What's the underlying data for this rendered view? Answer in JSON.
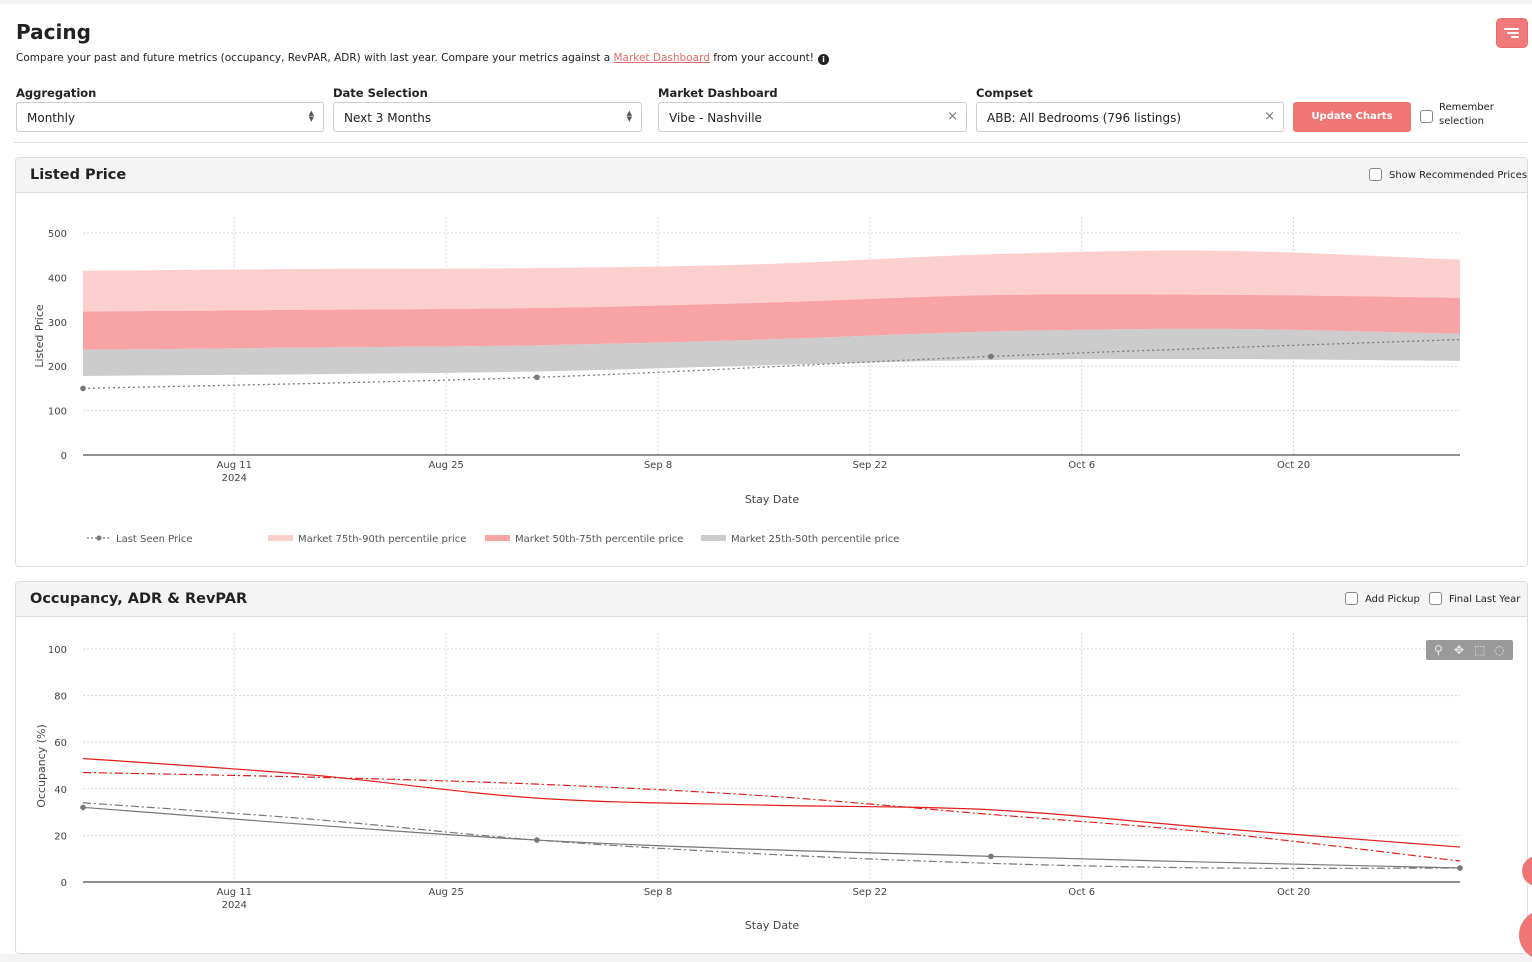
{
  "header": {
    "title": "Pacing",
    "subtitle_before": "Compare your past and future metrics (occupancy, RevPAR, ADR) with last year. Compare your metrics against a ",
    "subtitle_link": "Market Dashboard",
    "subtitle_after": " from your account!",
    "info_icon": "info-icon",
    "menu_icon": "menu-lines-icon"
  },
  "filters": {
    "aggregation": {
      "label": "Aggregation",
      "value": "Monthly"
    },
    "date_selection": {
      "label": "Date Selection",
      "value": "Next 3 Months"
    },
    "market_dashboard": {
      "label": "Market Dashboard",
      "value": "Vibe - Nashville"
    },
    "compset": {
      "label": "Compset",
      "value": "ABB: All Bedrooms (796 listings)"
    },
    "update_button": "Update Charts",
    "remember_line1": "Remember",
    "remember_line2": "selection"
  },
  "colors": {
    "accent": "#f07676",
    "band_75_90": "#fccfcf",
    "band_50_75": "#f8a3a5",
    "band_25_50": "#cccccc",
    "line_gray": "#777777",
    "line_red": "#e51c1c"
  },
  "listed_price_panel": {
    "title": "Listed Price",
    "option": "Show Recommended Prices",
    "legend": {
      "last_seen": "Last Seen Price",
      "p75_90": "Market 75th-90th percentile price",
      "p50_75": "Market 50th-75th percentile price",
      "p25_50": "Market 25th-50th percentile price"
    }
  },
  "occupancy_panel": {
    "title": "Occupancy, ADR & RevPAR",
    "option_pickup": "Add Pickup",
    "option_final": "Final Last Year",
    "modebar_icons": [
      "zoom-icon",
      "pan-icon",
      "box-select-icon",
      "lasso-icon"
    ]
  },
  "chart_data": [
    {
      "type": "area",
      "x_type": "date",
      "xlabel": "Stay Date",
      "ylabel": "Listed Price",
      "xlim": [
        "2024-08-01",
        "2024-10-31"
      ],
      "ylim": [
        0,
        500
      ],
      "yticks": [
        0,
        100,
        200,
        300,
        400,
        500
      ],
      "xticks": [
        {
          "date": "2024-08-11",
          "label": "Aug 11",
          "sublabel": "2024"
        },
        {
          "date": "2024-08-25",
          "label": "Aug 25",
          "sublabel": ""
        },
        {
          "date": "2024-09-08",
          "label": "Sep 8",
          "sublabel": ""
        },
        {
          "date": "2024-09-22",
          "label": "Sep 22",
          "sublabel": ""
        },
        {
          "date": "2024-10-06",
          "label": "Oct 6",
          "sublabel": ""
        },
        {
          "date": "2024-10-20",
          "label": "Oct 20",
          "sublabel": ""
        }
      ],
      "grid": true,
      "legend_position": "bottom",
      "x": [
        "2024-08-01",
        "2024-08-16",
        "2024-08-31",
        "2024-09-15",
        "2024-09-30",
        "2024-10-15",
        "2024-10-31"
      ],
      "bands": [
        {
          "name": "Market 75th-90th percentile price",
          "color": "#fccfcf",
          "lower": [
            323,
            327,
            331,
            343,
            360,
            361,
            354
          ],
          "upper": [
            415,
            419,
            421,
            430,
            452,
            460,
            440
          ]
        },
        {
          "name": "Market 50th-75th percentile price",
          "color": "#f8a3a5",
          "lower": [
            237,
            242,
            247,
            260,
            278,
            284,
            273
          ],
          "upper": [
            323,
            327,
            331,
            343,
            360,
            361,
            354
          ]
        },
        {
          "name": "Market 25th-50th percentile price",
          "color": "#cccccc",
          "lower": [
            178,
            182,
            188,
            202,
            214,
            216,
            212
          ],
          "upper": [
            237,
            242,
            247,
            260,
            278,
            284,
            273
          ]
        }
      ],
      "series": [
        {
          "name": "Last Seen Price",
          "style": "dotted",
          "color": "#777777",
          "x": [
            "2024-08-01",
            "2024-08-31",
            "2024-09-30",
            "2024-10-31"
          ],
          "values": [
            150,
            175,
            222,
            260
          ],
          "markers": [
            true,
            true,
            true,
            false
          ]
        }
      ]
    },
    {
      "type": "line",
      "x_type": "date",
      "xlabel": "Stay Date",
      "ylabel": "Occupancy (%)",
      "xlim": [
        "2024-08-01",
        "2024-10-31"
      ],
      "ylim": [
        0,
        100
      ],
      "yticks": [
        0,
        20,
        40,
        60,
        80,
        100
      ],
      "xticks": [
        {
          "date": "2024-08-11",
          "label": "Aug 11",
          "sublabel": "2024"
        },
        {
          "date": "2024-08-25",
          "label": "Aug 25",
          "sublabel": ""
        },
        {
          "date": "2024-09-08",
          "label": "Sep 8",
          "sublabel": ""
        },
        {
          "date": "2024-09-22",
          "label": "Sep 22",
          "sublabel": ""
        },
        {
          "date": "2024-10-06",
          "label": "Oct 6",
          "sublabel": ""
        },
        {
          "date": "2024-10-20",
          "label": "Oct 20",
          "sublabel": ""
        }
      ],
      "grid": true,
      "series": [
        {
          "style": "solid",
          "color": "#e51c1c",
          "x": [
            "2024-08-01",
            "2024-08-16",
            "2024-08-31",
            "2024-09-15",
            "2024-09-30",
            "2024-10-15",
            "2024-10-31"
          ],
          "values": [
            53,
            46,
            36,
            33,
            31,
            23,
            15
          ]
        },
        {
          "style": "dashdot",
          "color": "#e51c1c",
          "x": [
            "2024-08-01",
            "2024-08-16",
            "2024-08-31",
            "2024-09-15",
            "2024-09-30",
            "2024-10-15",
            "2024-10-31"
          ],
          "values": [
            47,
            45,
            42,
            37,
            29,
            21,
            9
          ]
        },
        {
          "style": "solid",
          "color": "#777777",
          "markers": true,
          "x": [
            "2024-08-01",
            "2024-08-31",
            "2024-09-30",
            "2024-10-31"
          ],
          "values": [
            32,
            18,
            11,
            6
          ]
        },
        {
          "style": "dashdot",
          "color": "#777777",
          "x": [
            "2024-08-01",
            "2024-08-16",
            "2024-08-31",
            "2024-09-15",
            "2024-09-30",
            "2024-10-15",
            "2024-10-31"
          ],
          "values": [
            34,
            27,
            18,
            12,
            8,
            6,
            6
          ]
        }
      ]
    }
  ]
}
